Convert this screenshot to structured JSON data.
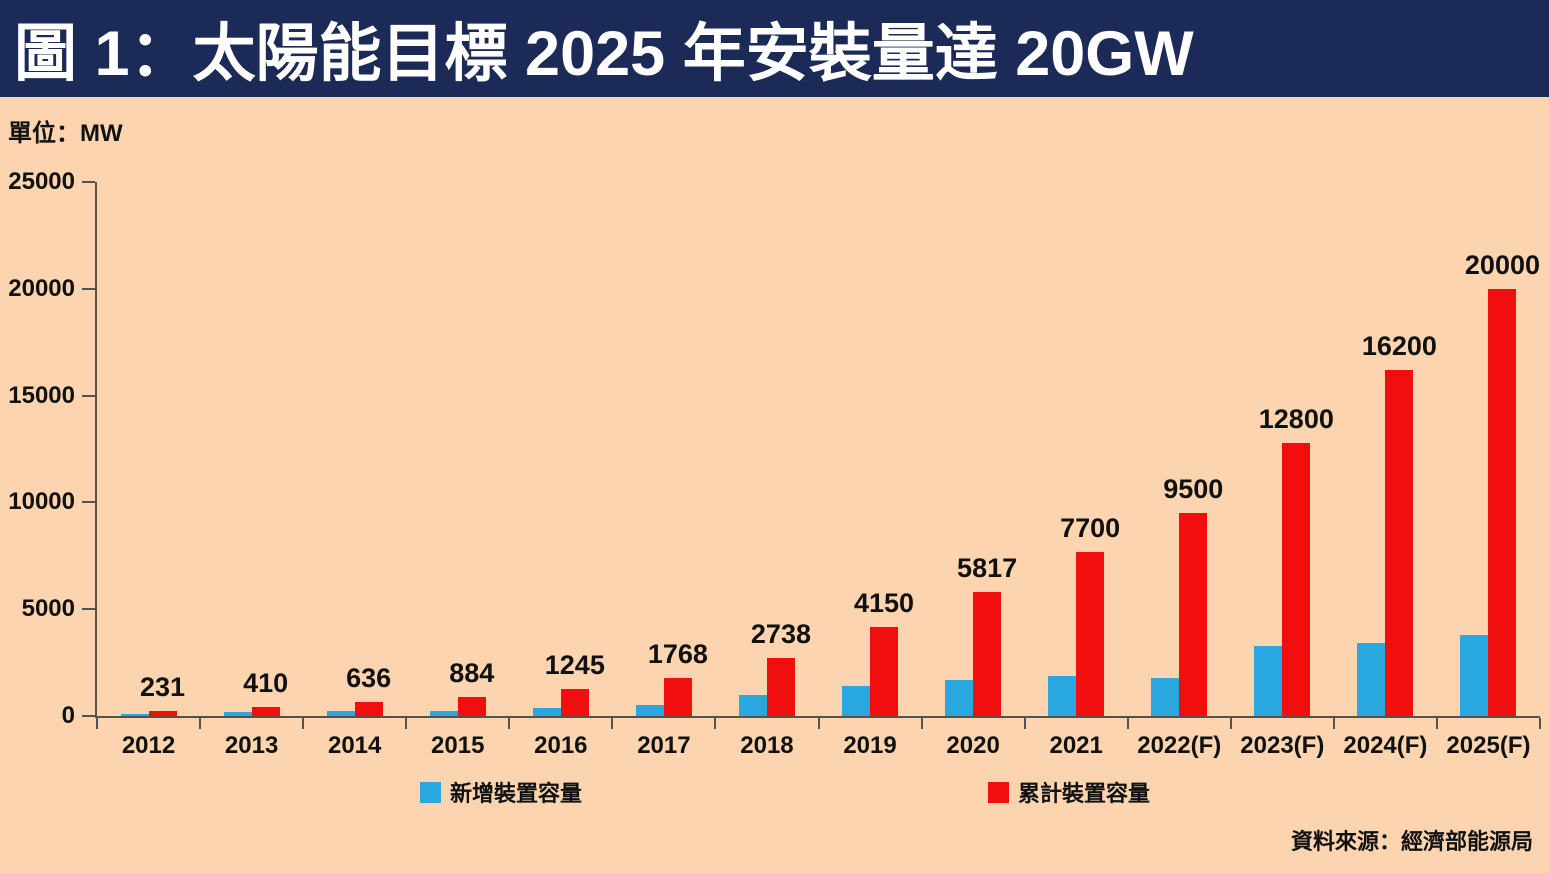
{
  "title": "圖 1：太陽能目標 2025 年安裝量達 20GW",
  "unit_label": "單位：MW",
  "source": "資料來源：經濟部能源局",
  "legend": {
    "new_capacity_label": "新增裝置容量",
    "cumulative_label": "累計裝置容量"
  },
  "colors": {
    "title_bg": "#1b2a57",
    "title_text": "#ffffff",
    "background": "#fcd5b0",
    "new_capacity": "#29a8e0",
    "cumulative": "#f10e0e",
    "axis": "#58504a",
    "text": "#111111"
  },
  "chart_data": {
    "type": "bar",
    "title": "圖 1：太陽能目標 2025 年安裝量達 20GW",
    "xlabel": "",
    "ylabel": "單位：MW",
    "unit": "MW",
    "categories": [
      "2012",
      "2013",
      "2014",
      "2015",
      "2016",
      "2017",
      "2018",
      "2019",
      "2020",
      "2021",
      "2022(F)",
      "2023(F)",
      "2024(F)",
      "2025(F)"
    ],
    "series": [
      {
        "name": "新增裝置容量",
        "color": "#29a8e0",
        "values": [
          100,
          180,
          225,
          250,
          360,
          520,
          970,
          1410,
          1670,
          1880,
          1800,
          3300,
          3400,
          3800
        ]
      },
      {
        "name": "累計裝置容量",
        "color": "#f10e0e",
        "values": [
          231,
          410,
          636,
          884,
          1245,
          1768,
          2738,
          4150,
          5817,
          7700,
          9500,
          12800,
          16200,
          20000
        ]
      }
    ],
    "data_labels": [
      231,
      410,
      636,
      884,
      1245,
      1768,
      2738,
      4150,
      5817,
      7700,
      9500,
      12800,
      16200,
      20000
    ],
    "data_labels_on_series": "累計裝置容量",
    "ylim": [
      0,
      25000
    ],
    "y_ticks": [
      0,
      5000,
      10000,
      15000,
      20000,
      25000
    ],
    "grid": false,
    "legend_position": "bottom"
  }
}
